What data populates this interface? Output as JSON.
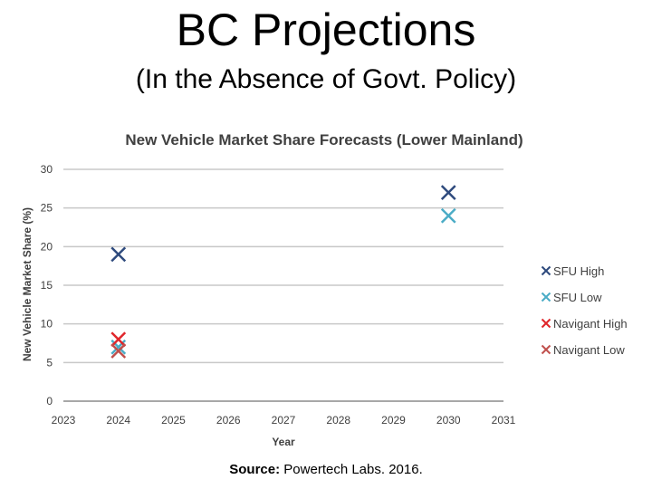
{
  "slide": {
    "title": "BC Projections",
    "subtitle": "(In the Absence of Govt. Policy)",
    "source_label": "Source:",
    "source_text": "Powertech Labs. 2016."
  },
  "chart_data": {
    "type": "scatter",
    "title": "New Vehicle Market Share Forecasts (Lower Mainland)",
    "xlabel": "Year",
    "ylabel": "New Vehicle Market Share (%)",
    "xlim": [
      2023,
      2031
    ],
    "ylim": [
      0,
      30
    ],
    "x_ticks": [
      "2023",
      "2024",
      "2025",
      "2026",
      "2027",
      "2028",
      "2029",
      "2030",
      "2031"
    ],
    "y_ticks": [
      "0",
      "5",
      "10",
      "15",
      "20",
      "25",
      "30"
    ],
    "grid": true,
    "legend_position": "right",
    "marker": "x",
    "series": [
      {
        "name": "SFU High",
        "color": "#2E4A7D",
        "points": [
          {
            "x": 2024,
            "y": 19
          },
          {
            "x": 2030,
            "y": 27
          }
        ]
      },
      {
        "name": "SFU Low",
        "color": "#4BACC6",
        "points": [
          {
            "x": 2024,
            "y": 7
          },
          {
            "x": 2030,
            "y": 24
          }
        ]
      },
      {
        "name": "Navigant High",
        "color": "#E0262B",
        "points": [
          {
            "x": 2024,
            "y": 8
          }
        ]
      },
      {
        "name": "Navigant Low",
        "color": "#C0504D",
        "points": [
          {
            "x": 2024,
            "y": 6.5
          }
        ]
      }
    ]
  }
}
